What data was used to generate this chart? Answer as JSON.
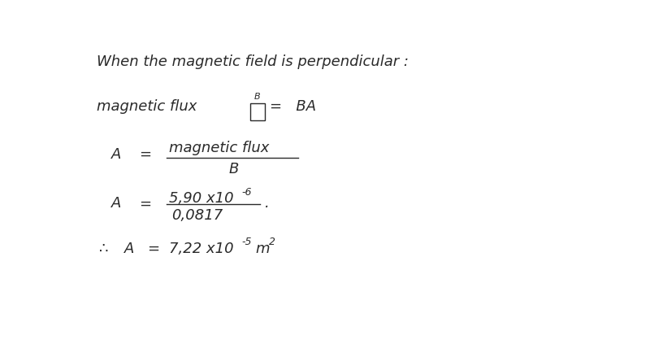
{
  "bg_color": "#ffffff",
  "text_color": "#2a2a2a",
  "font_size_main": 13,
  "font_size_small": 9,
  "line1": "When the magnetic field is perpendicular :",
  "line2_label": "magnetic flux",
  "line2_B_super": "B",
  "line2_eq_BA": "=   BA",
  "line3_num": "magnetic flux",
  "line3_den": "B",
  "line4_num": "5,90 x10",
  "line4_exp": "-6",
  "line4_den": "0,0817",
  "line4_dot": ".",
  "line5_val": "7,22 x10",
  "line5_exp": "-5",
  "line5_unit": "m",
  "line5_unit_exp": "2"
}
